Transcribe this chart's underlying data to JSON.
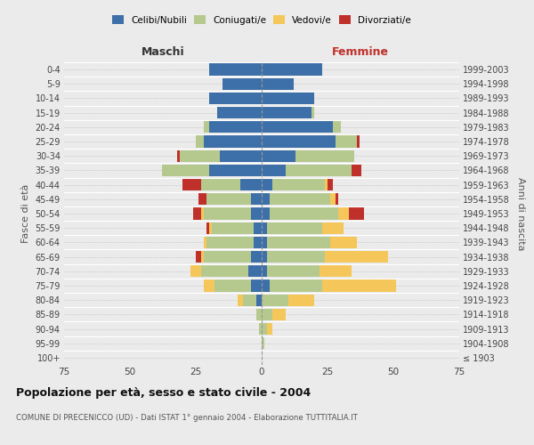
{
  "age_groups": [
    "100+",
    "95-99",
    "90-94",
    "85-89",
    "80-84",
    "75-79",
    "70-74",
    "65-69",
    "60-64",
    "55-59",
    "50-54",
    "45-49",
    "40-44",
    "35-39",
    "30-34",
    "25-29",
    "20-24",
    "15-19",
    "10-14",
    "5-9",
    "0-4"
  ],
  "birth_years": [
    "≤ 1903",
    "1904-1908",
    "1909-1913",
    "1914-1918",
    "1919-1923",
    "1924-1928",
    "1929-1933",
    "1934-1938",
    "1939-1943",
    "1944-1948",
    "1949-1953",
    "1954-1958",
    "1959-1963",
    "1964-1968",
    "1969-1973",
    "1974-1978",
    "1979-1983",
    "1984-1988",
    "1989-1993",
    "1994-1998",
    "1999-2003"
  ],
  "colors": {
    "celibe": "#3d6fa8",
    "coniugato": "#b5c98e",
    "vedovo": "#f5c75a",
    "divorziato": "#c0302a"
  },
  "maschi": {
    "celibe": [
      0,
      0,
      0,
      0,
      2,
      4,
      5,
      4,
      3,
      3,
      4,
      4,
      8,
      20,
      16,
      22,
      20,
      17,
      20,
      15,
      20
    ],
    "coniugato": [
      0,
      0,
      1,
      2,
      5,
      14,
      18,
      18,
      18,
      16,
      18,
      17,
      15,
      18,
      15,
      3,
      2,
      0,
      0,
      0,
      0
    ],
    "vedovo": [
      0,
      0,
      0,
      0,
      2,
      4,
      4,
      1,
      1,
      1,
      1,
      0,
      0,
      0,
      0,
      0,
      0,
      0,
      0,
      0,
      0
    ],
    "divorziato": [
      0,
      0,
      0,
      0,
      0,
      0,
      0,
      2,
      0,
      1,
      3,
      3,
      7,
      0,
      1,
      0,
      0,
      0,
      0,
      0,
      0
    ]
  },
  "femmine": {
    "nubile": [
      0,
      0,
      0,
      0,
      0,
      3,
      2,
      2,
      2,
      2,
      3,
      3,
      4,
      9,
      13,
      28,
      27,
      19,
      20,
      12,
      23
    ],
    "coniugata": [
      0,
      1,
      2,
      4,
      10,
      20,
      20,
      22,
      24,
      21,
      26,
      23,
      20,
      25,
      22,
      8,
      3,
      1,
      0,
      0,
      0
    ],
    "vedova": [
      0,
      0,
      2,
      5,
      10,
      28,
      12,
      24,
      10,
      8,
      4,
      2,
      1,
      0,
      0,
      0,
      0,
      0,
      0,
      0,
      0
    ],
    "divorziata": [
      0,
      0,
      0,
      0,
      0,
      0,
      0,
      0,
      0,
      0,
      6,
      1,
      2,
      4,
      0,
      1,
      0,
      0,
      0,
      0,
      0
    ]
  },
  "title": "Popolazione per età, sesso e stato civile - 2004",
  "subtitle": "COMUNE DI PRECENICCO (UD) - Dati ISTAT 1° gennaio 2004 - Elaborazione TUTTITALIA.IT",
  "xlabel_maschi": "Maschi",
  "xlabel_femmine": "Femmine",
  "ylabel_left": "Fasce di età",
  "ylabel_right": "Anni di nascita",
  "xlim": 75,
  "bg_color": "#ebebeb",
  "legend_labels": [
    "Celibi/Nubili",
    "Coniugati/e",
    "Vedovi/e",
    "Divorziati/e"
  ]
}
